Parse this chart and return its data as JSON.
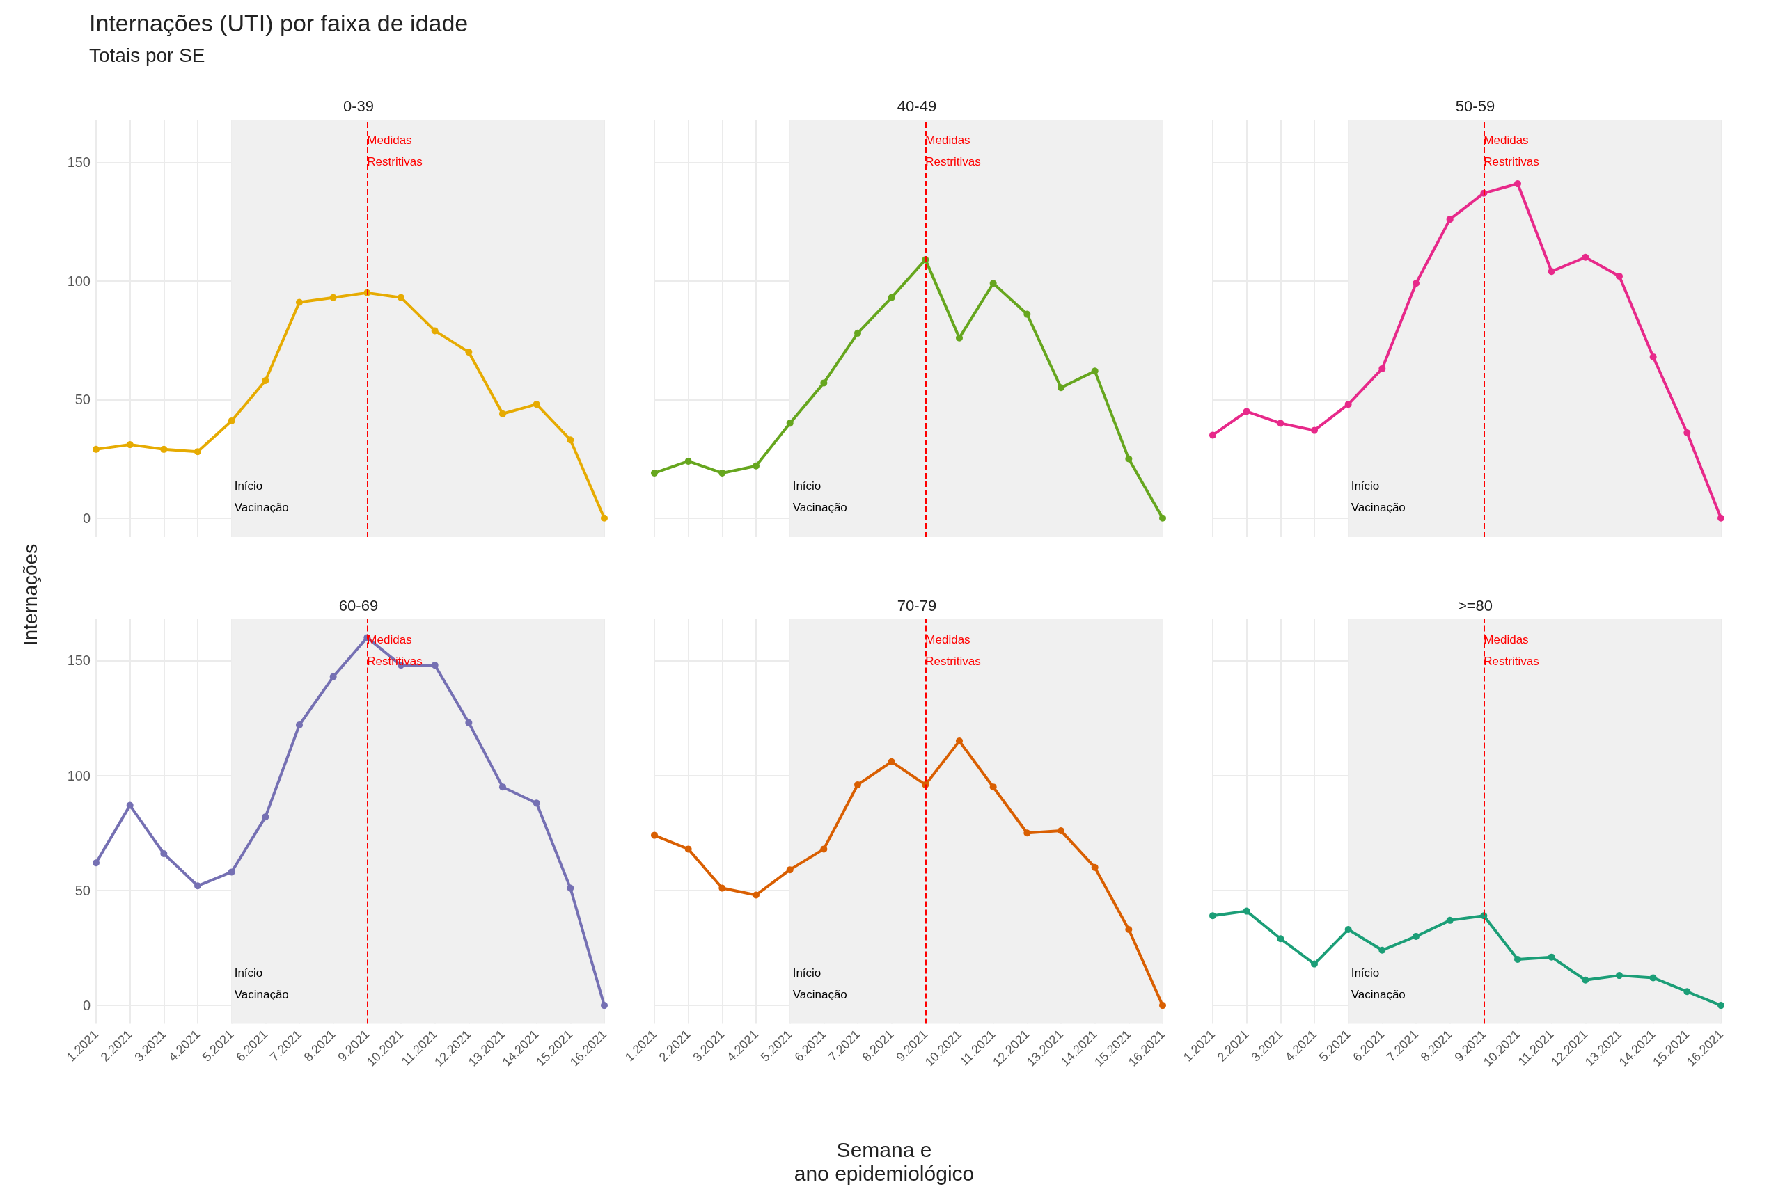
{
  "chart_data": [
    {
      "type": "line",
      "title": "0-39",
      "annotations": [
        "Internações (UTI) por faixa de idade",
        "Totais por SE",
        {
          "text": "Início\nVacinação",
          "x": "5.2021",
          "y": 0
        }
      ],
      "ylabel": "Internações",
      "categories": [
        "1.2021",
        "2.2021",
        "3.2021",
        "4.2021",
        "5.2021",
        "6.2021",
        "7.2021",
        "8.2021",
        "9.2021",
        "10.2021",
        "11.2021",
        "12.2021",
        "13.2021",
        "14.2021",
        "15.2021",
        "16.2021"
      ],
      "values": [
        29,
        31,
        29,
        28,
        41,
        58,
        91,
        93,
        95,
        93,
        79,
        70,
        44,
        48,
        33,
        0
      ],
      "color": "#e6ab02",
      "ylim": [
        -8,
        168
      ],
      "yticks": [
        0,
        50,
        100,
        150
      ],
      "grid": true,
      "marker": "circle",
      "tick_labels": "y",
      "bands": [
        {
          "axis": "x",
          "from": "5.2021",
          "to": "16.2021",
          "color": "#f0f0f0"
        }
      ],
      "ref_lines": [
        {
          "axis": "x",
          "value": "9.2021",
          "label": "Medidas\nRestritivas",
          "color": "#ff0000",
          "line_style": "dashed"
        }
      ]
    },
    {
      "type": "line",
      "title": "40-49",
      "annotations": [
        {
          "text": "Início\nVacinação",
          "x": "5.2021",
          "y": 0
        }
      ],
      "categories": [
        "1.2021",
        "2.2021",
        "3.2021",
        "4.2021",
        "5.2021",
        "6.2021",
        "7.2021",
        "8.2021",
        "9.2021",
        "10.2021",
        "11.2021",
        "12.2021",
        "13.2021",
        "14.2021",
        "15.2021",
        "16.2021"
      ],
      "values": [
        19,
        24,
        19,
        22,
        40,
        57,
        78,
        93,
        109,
        76,
        99,
        86,
        55,
        62,
        25,
        0
      ],
      "color": "#66a61e",
      "ylim": [
        -8,
        168
      ],
      "yticks": [
        0,
        50,
        100,
        150
      ],
      "grid": true,
      "marker": "circle",
      "tick_labels": false,
      "bands": [
        {
          "axis": "x",
          "from": "5.2021",
          "to": "16.2021",
          "color": "#f0f0f0"
        }
      ],
      "ref_lines": [
        {
          "axis": "x",
          "value": "9.2021",
          "label": "Medidas\nRestritivas",
          "color": "#ff0000",
          "line_style": "dashed"
        }
      ]
    },
    {
      "type": "line",
      "title": "50-59",
      "annotations": [
        {
          "text": "Início\nVacinação",
          "x": "5.2021",
          "y": 0
        }
      ],
      "categories": [
        "1.2021",
        "2.2021",
        "3.2021",
        "4.2021",
        "5.2021",
        "6.2021",
        "7.2021",
        "8.2021",
        "9.2021",
        "10.2021",
        "11.2021",
        "12.2021",
        "13.2021",
        "14.2021",
        "15.2021",
        "16.2021"
      ],
      "values": [
        35,
        45,
        40,
        37,
        48,
        63,
        99,
        126,
        137,
        141,
        104,
        110,
        102,
        68,
        36,
        0
      ],
      "color": "#e7298a",
      "ylim": [
        -8,
        168
      ],
      "yticks": [
        0,
        50,
        100,
        150
      ],
      "grid": true,
      "marker": "circle",
      "tick_labels": false,
      "bands": [
        {
          "axis": "x",
          "from": "5.2021",
          "to": "16.2021",
          "color": "#f0f0f0"
        }
      ],
      "ref_lines": [
        {
          "axis": "x",
          "value": "9.2021",
          "label": "Medidas\nRestritivas",
          "color": "#ff0000",
          "line_style": "dashed"
        }
      ]
    },
    {
      "type": "line",
      "title": "60-69",
      "annotations": [
        {
          "text": "Início\nVacinação",
          "x": "5.2021",
          "y": 0
        }
      ],
      "categories": [
        "1.2021",
        "2.2021",
        "3.2021",
        "4.2021",
        "5.2021",
        "6.2021",
        "7.2021",
        "8.2021",
        "9.2021",
        "10.2021",
        "11.2021",
        "12.2021",
        "13.2021",
        "14.2021",
        "15.2021",
        "16.2021"
      ],
      "values": [
        62,
        87,
        66,
        52,
        58,
        82,
        122,
        143,
        160,
        148,
        148,
        123,
        95,
        88,
        51,
        0
      ],
      "color": "#7570b3",
      "ylim": [
        -8,
        168
      ],
      "yticks": [
        0,
        50,
        100,
        150
      ],
      "grid": true,
      "marker": "circle",
      "bands": [
        {
          "axis": "x",
          "from": "5.2021",
          "to": "16.2021",
          "color": "#f0f0f0"
        }
      ],
      "ref_lines": [
        {
          "axis": "x",
          "value": "9.2021",
          "label": "Medidas\nRestritivas",
          "color": "#ff0000",
          "line_style": "dashed"
        }
      ]
    },
    {
      "type": "line",
      "title": "70-79",
      "xlabel": "Semana e\nano epidemiológico",
      "annotations": [
        {
          "text": "Início\nVacinação",
          "x": "5.2021",
          "y": 0
        }
      ],
      "categories": [
        "1.2021",
        "2.2021",
        "3.2021",
        "4.2021",
        "5.2021",
        "6.2021",
        "7.2021",
        "8.2021",
        "9.2021",
        "10.2021",
        "11.2021",
        "12.2021",
        "13.2021",
        "14.2021",
        "15.2021",
        "16.2021"
      ],
      "values": [
        74,
        68,
        51,
        48,
        59,
        68,
        96,
        106,
        96,
        115,
        95,
        75,
        76,
        60,
        33,
        0
      ],
      "color": "#d95f02",
      "ylim": [
        -8,
        168
      ],
      "yticks": [
        0,
        50,
        100,
        150
      ],
      "grid": true,
      "marker": "circle",
      "tick_labels": "x",
      "bands": [
        {
          "axis": "x",
          "from": "5.2021",
          "to": "16.2021",
          "color": "#f0f0f0"
        }
      ],
      "ref_lines": [
        {
          "axis": "x",
          "value": "9.2021",
          "label": "Medidas\nRestritivas",
          "color": "#ff0000",
          "line_style": "dashed"
        }
      ]
    },
    {
      "type": "line",
      "title": ">=80",
      "annotations": [
        {
          "text": "Início\nVacinação",
          "x": "5.2021",
          "y": 0
        }
      ],
      "categories": [
        "1.2021",
        "2.2021",
        "3.2021",
        "4.2021",
        "5.2021",
        "6.2021",
        "7.2021",
        "8.2021",
        "9.2021",
        "10.2021",
        "11.2021",
        "12.2021",
        "13.2021",
        "14.2021",
        "15.2021",
        "16.2021"
      ],
      "values": [
        39,
        41,
        29,
        18,
        33,
        24,
        30,
        37,
        39,
        20,
        21,
        11,
        13,
        12,
        6,
        0
      ],
      "color": "#1b9e77",
      "ylim": [
        -8,
        168
      ],
      "yticks": [
        0,
        50,
        100,
        150
      ],
      "grid": true,
      "marker": "circle",
      "tick_labels": "x",
      "bands": [
        {
          "axis": "x",
          "from": "5.2021",
          "to": "16.2021",
          "color": "#f0f0f0"
        }
      ],
      "ref_lines": [
        {
          "axis": "x",
          "value": "9.2021",
          "label": "Medidas\nRestritivas",
          "color": "#ff0000",
          "line_style": "dashed"
        }
      ]
    }
  ]
}
